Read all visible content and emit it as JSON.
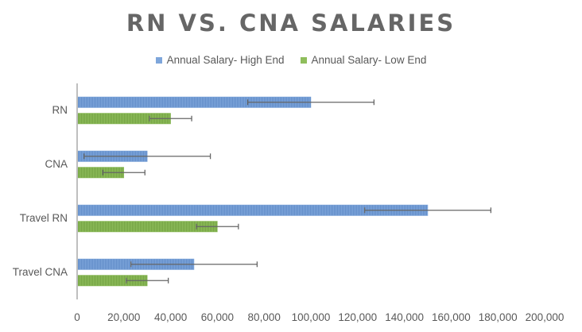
{
  "chart_data": {
    "type": "bar",
    "orientation": "horizontal",
    "title": "RN VS. CNA SALARIES",
    "categories": [
      "RN",
      "CNA",
      "Travel RN",
      "Travel CNA"
    ],
    "series": [
      {
        "name": "Annual Salary- High End",
        "color": "#7EA6DB",
        "values": [
          100000,
          30000,
          150000,
          50000
        ],
        "error_bars": [
          [
            73000,
            127000
          ],
          [
            3000,
            57000
          ],
          [
            123000,
            177000
          ],
          [
            23000,
            77000
          ]
        ]
      },
      {
        "name": "Annual Salary- Low End",
        "color": "#8FBE5C",
        "values": [
          40000,
          20000,
          60000,
          30000
        ],
        "error_bars": [
          [
            31000,
            49000
          ],
          [
            11000,
            29000
          ],
          [
            51000,
            69000
          ],
          [
            21000,
            39000
          ]
        ]
      }
    ],
    "xlim": [
      0,
      200000
    ],
    "xticks": [
      "0",
      "20,000",
      "40,000",
      "60,000",
      "80,000",
      "100,000",
      "120,000",
      "140,000",
      "160,000",
      "180,000",
      "200,000"
    ],
    "xlabel": "",
    "ylabel": "",
    "grid": false,
    "legend_position": "top"
  }
}
